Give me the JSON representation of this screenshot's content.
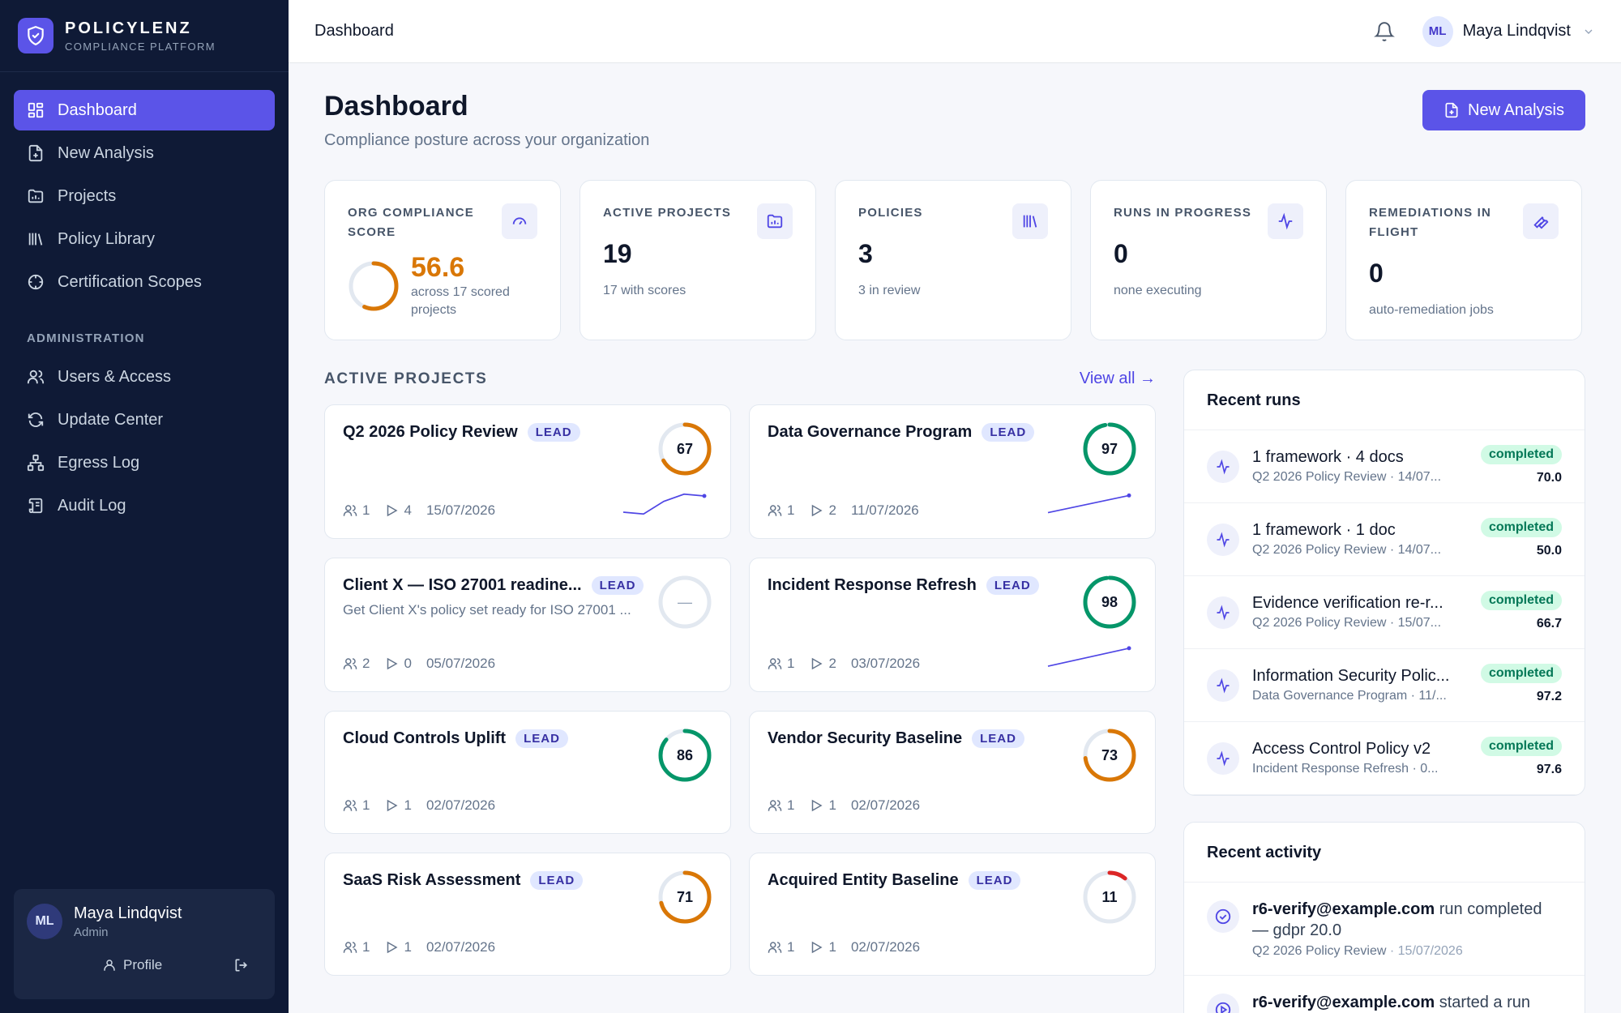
{
  "brand": {
    "name": "POLICYLENZ",
    "subtitle": "COMPLIANCE PLATFORM"
  },
  "sidebar": {
    "items": [
      {
        "label": "Dashboard",
        "icon": "grid-icon",
        "active": true
      },
      {
        "label": "New Analysis",
        "icon": "file-plus-icon"
      },
      {
        "label": "Projects",
        "icon": "folder-chart-icon"
      },
      {
        "label": "Policy Library",
        "icon": "library-icon"
      },
      {
        "label": "Certification Scopes",
        "icon": "target-icon"
      }
    ],
    "admin_section": "ADMINISTRATION",
    "admin_items": [
      {
        "label": "Users & Access",
        "icon": "users-icon"
      },
      {
        "label": "Update Center",
        "icon": "refresh-icon"
      },
      {
        "label": "Egress Log",
        "icon": "network-icon"
      },
      {
        "label": "Audit Log",
        "icon": "scroll-icon"
      }
    ],
    "user": {
      "initials": "ML",
      "name": "Maya Lindqvist",
      "role": "Admin",
      "profile_label": "Profile"
    }
  },
  "topbar": {
    "title": "Dashboard",
    "user_initials": "ML",
    "user_name": "Maya Lindqvist"
  },
  "page": {
    "title": "Dashboard",
    "subtitle": "Compliance posture across your organization",
    "new_analysis_label": "New Analysis"
  },
  "stats": {
    "score": {
      "label": "ORG COMPLIANCE SCORE",
      "value": "56.6",
      "fraction": 0.566,
      "note": "across 17 scored projects"
    },
    "projects": {
      "label": "ACTIVE PROJECTS",
      "value": "19",
      "note": "17 with scores"
    },
    "policies": {
      "label": "POLICIES",
      "value": "3",
      "note": "3 in review"
    },
    "runs": {
      "label": "RUNS IN PROGRESS",
      "value": "0",
      "note": "none executing"
    },
    "remediations": {
      "label": "REMEDIATIONS IN FLIGHT",
      "value": "0",
      "note": "auto-remediation jobs"
    }
  },
  "active_projects": {
    "title": "ACTIVE PROJECTS",
    "view_all": "View all →",
    "lead_label": "LEAD",
    "items": [
      {
        "title": "Q2 2026 Policy Review",
        "desc": "",
        "score": "67",
        "members": "1",
        "runs": "4",
        "date": "15/07/2026",
        "trend": [
          58,
          57,
          64,
          68,
          67
        ]
      },
      {
        "title": "Data Governance Program",
        "desc": "",
        "score": "97",
        "members": "1",
        "runs": "2",
        "date": "11/07/2026",
        "trend": [
          90,
          97
        ]
      },
      {
        "title": "Client X — ISO 27001 readine...",
        "desc": "Get Client X's policy set ready for ISO 27001 ...",
        "score": "—",
        "members": "2",
        "runs": "0",
        "date": "05/07/2026",
        "trend": []
      },
      {
        "title": "Incident Response Refresh",
        "desc": "",
        "score": "98",
        "members": "1",
        "runs": "2",
        "date": "03/07/2026",
        "trend": [
          90,
          98
        ]
      },
      {
        "title": "Cloud Controls Uplift",
        "desc": "",
        "score": "86",
        "members": "1",
        "runs": "1",
        "date": "02/07/2026",
        "trend": []
      },
      {
        "title": "Vendor Security Baseline",
        "desc": "",
        "score": "73",
        "members": "1",
        "runs": "1",
        "date": "02/07/2026",
        "trend": []
      },
      {
        "title": "SaaS Risk Assessment",
        "desc": "",
        "score": "71",
        "members": "1",
        "runs": "1",
        "date": "02/07/2026",
        "trend": []
      },
      {
        "title": "Acquired Entity Baseline",
        "desc": "",
        "score": "11",
        "members": "1",
        "runs": "1",
        "date": "02/07/2026",
        "trend": []
      }
    ]
  },
  "recent_runs": {
    "title": "Recent runs",
    "items": [
      {
        "title": "1 framework · 4 docs",
        "sub": "Q2 2026 Policy Review · 14/07...",
        "status": "completed",
        "score": "70.0"
      },
      {
        "title": "1 framework · 1 doc",
        "sub": "Q2 2026 Policy Review · 14/07...",
        "status": "completed",
        "score": "50.0"
      },
      {
        "title": "Evidence verification re-r...",
        "sub": "Q2 2026 Policy Review · 15/07...",
        "status": "completed",
        "score": "66.7"
      },
      {
        "title": "Information Security Polic...",
        "sub": "Data Governance Program · 11/...",
        "status": "completed",
        "score": "97.2"
      },
      {
        "title": "Access Control Policy v2",
        "sub": "Incident Response Refresh · 0...",
        "status": "completed",
        "score": "97.6"
      }
    ]
  },
  "recent_activity": {
    "title": "Recent activity",
    "items": [
      {
        "email": "r6-verify@example.com",
        "text": " run completed — gdpr 20.0",
        "project": "Q2 2026 Policy Review",
        "date": " · 15/07/2026"
      },
      {
        "email": "r6-verify@example.com",
        "text": " started a run",
        "project": "",
        "date": ""
      }
    ]
  },
  "colors": {
    "accent": "#5b54e8",
    "orange": "#d97706",
    "green": "#059669",
    "red": "#dc2626",
    "sidebar": "#0f1a36"
  }
}
